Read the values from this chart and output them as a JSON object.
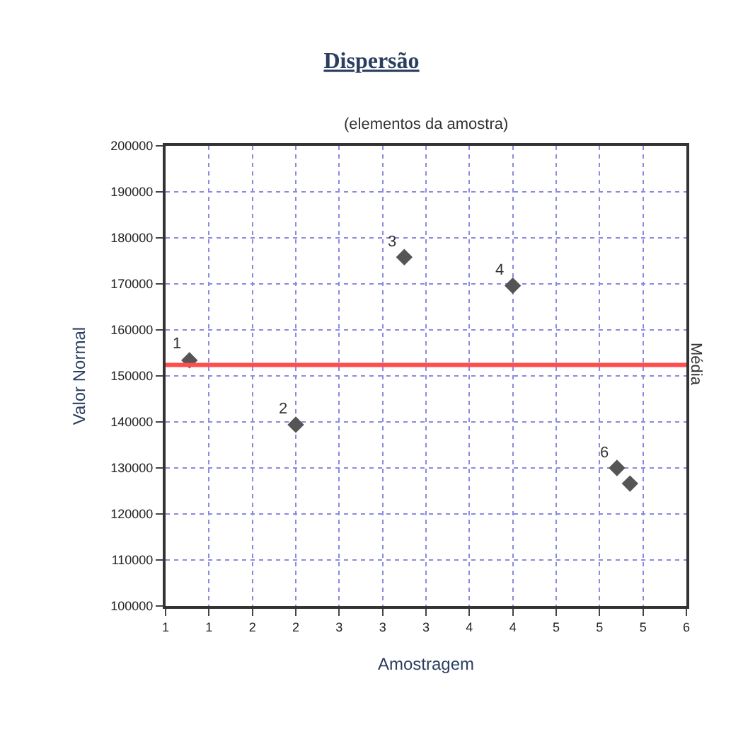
{
  "chart_data": {
    "type": "scatter",
    "title": "Dispersão",
    "subtitle": "(elementos da amostra)",
    "xlabel": "Amostragem",
    "ylabel": "Valor Normal",
    "x": [
      1.22,
      2.2,
      3.2,
      4.2,
      5.16,
      5.28
    ],
    "series": [
      {
        "color": "#555555",
        "values": [
          153400,
          139400,
          175800,
          169600,
          130000,
          126600
        ]
      }
    ],
    "marker": "diamond",
    "grid": true,
    "legend": false,
    "xlim": [
      1.0,
      5.8
    ],
    "xticks": [
      {
        "value": 1.0,
        "label": "1"
      },
      {
        "value": 1.4,
        "label": "1"
      },
      {
        "value": 1.8,
        "label": "2"
      },
      {
        "value": 2.2,
        "label": "2"
      },
      {
        "value": 2.6,
        "label": "3"
      },
      {
        "value": 3.0,
        "label": "3"
      },
      {
        "value": 3.4,
        "label": "3"
      },
      {
        "value": 3.8,
        "label": "4"
      },
      {
        "value": 4.2,
        "label": "4"
      },
      {
        "value": 4.6,
        "label": "5"
      },
      {
        "value": 5.0,
        "label": "5"
      },
      {
        "value": 5.4,
        "label": "5"
      },
      {
        "value": 5.8,
        "label": "6"
      }
    ],
    "ylim": [
      100000,
      200000
    ],
    "yticks": [
      100000,
      110000,
      120000,
      130000,
      140000,
      150000,
      160000,
      170000,
      180000,
      190000,
      200000
    ],
    "ref_lines": [
      {
        "axis": "y",
        "value": 152400,
        "label": "Média",
        "color": "#ff4d4d",
        "line_style": "solid"
      }
    ],
    "annotations": [
      {
        "text": "1",
        "x": 1.22,
        "y": 153400
      },
      {
        "text": "2",
        "x": 2.2,
        "y": 139400
      },
      {
        "text": "3",
        "x": 3.2,
        "y": 175800
      },
      {
        "text": "4",
        "x": 4.2,
        "y": 169600
      },
      {
        "text": "6",
        "x": 5.16,
        "y": 130000
      }
    ]
  }
}
